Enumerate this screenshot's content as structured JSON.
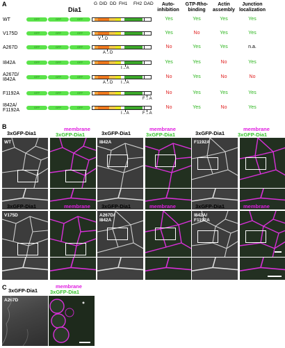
{
  "panel_a": {
    "label": "A",
    "protein": "Dia1",
    "domains": [
      "G",
      "DID",
      "DD",
      "FH1",
      "FH2",
      "DAD"
    ],
    "gfp_tag": "GFP",
    "columns": [
      "Auto-inhibition",
      "GTP-Rho-binding",
      "Actin assembly",
      "Junction localization"
    ],
    "rows": [
      {
        "name": "WT",
        "mutation_labels": [],
        "values": [
          "Yes",
          "Yes",
          "Yes",
          "Yes"
        ]
      },
      {
        "name": "V175D",
        "mutation_labels": [
          "V→D"
        ],
        "values": [
          "Yes",
          "No",
          "Yes",
          "Yes"
        ]
      },
      {
        "name": "A267D",
        "mutation_labels": [
          "A→D"
        ],
        "values": [
          "No",
          "Yes",
          "Yes",
          "n.a."
        ]
      },
      {
        "name": "I842A",
        "mutation_labels": [
          "I→A"
        ],
        "values": [
          "Yes",
          "Yes",
          "No",
          "Yes"
        ]
      },
      {
        "name": "A267D/ I842A",
        "mutation_labels": [
          "A→D",
          "I→A"
        ],
        "values": [
          "No",
          "Yes",
          "No",
          "No"
        ]
      },
      {
        "name": "F1192A",
        "mutation_labels": [
          "F→A"
        ],
        "values": [
          "No",
          "Yes",
          "Yes",
          "Yes"
        ]
      },
      {
        "name": "I842A/ F1192A",
        "mutation_labels": [
          "I→A",
          "F→A"
        ],
        "values": [
          "No",
          "Yes",
          "No",
          "Yes"
        ]
      }
    ]
  },
  "panel_b": {
    "label": "B",
    "channel_gfp": "3xGFP-Dia1",
    "channel_membrane": "membrane",
    "columns_top": [
      "WT",
      "I842A",
      "F1192A"
    ],
    "columns_bottom": [
      "V175D",
      "A267D/ I842A",
      "I842A/ F1192A"
    ]
  },
  "panel_c": {
    "label": "C",
    "channel_gfp": "3xGFP-Dia1",
    "channel_membrane": "membrane",
    "sample": "A267D"
  },
  "colors": {
    "yes": "#2bb51d",
    "no": "#e02020",
    "gfp": "#5be34a",
    "membrane": "#e01ee0",
    "G": "#f2a23a",
    "DID": "#f07a1e",
    "DD": "#f5c84a",
    "FH1": "#e8e81a",
    "FH2": "#3ca82a"
  }
}
